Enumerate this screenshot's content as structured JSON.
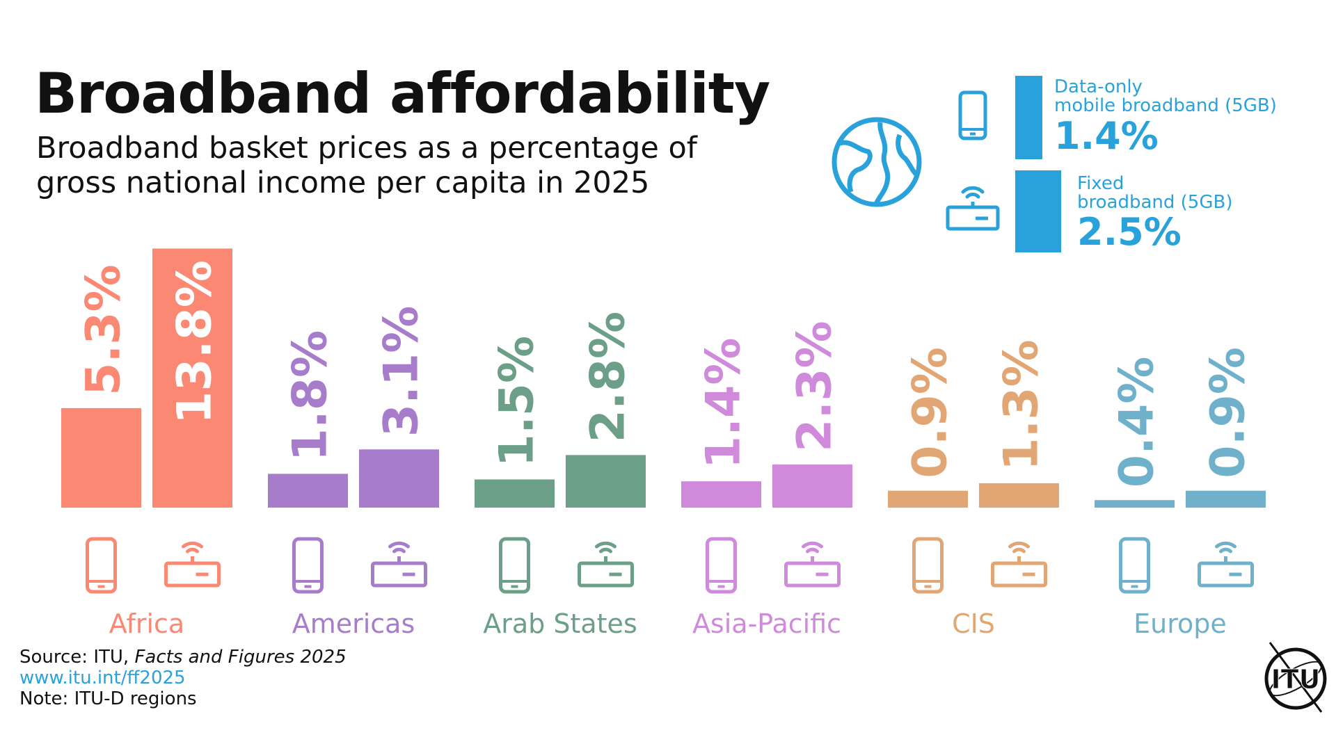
{
  "title": "Broadband affordability",
  "subtitle": "Broadband basket prices as a percentage of gross national income per capita in 2025",
  "legend": {
    "mobile": {
      "label_line1": "Data-only",
      "label_line2": "mobile broadband (5GB)",
      "value": "1.4%",
      "icon": "phone-icon"
    },
    "fixed": {
      "label_line1": "Fixed",
      "label_line2": "broadband (5GB)",
      "value": "2.5%",
      "icon": "router-icon"
    },
    "globe_icon": "globe-icon",
    "color": "#29a2dc"
  },
  "chart_data": {
    "type": "bar",
    "value_suffix": "%",
    "series_icons": [
      "phone-icon",
      "router-icon"
    ],
    "groups": [
      {
        "name": "Africa",
        "color": "#fb8873",
        "values": [
          5.3,
          13.8
        ],
        "labels": [
          "5.3%",
          "13.8%"
        ]
      },
      {
        "name": "Americas",
        "color": "#a77dcb",
        "values": [
          1.8,
          3.1
        ],
        "labels": [
          "1.8%",
          "3.1%"
        ]
      },
      {
        "name": "Arab States",
        "color": "#6b9f87",
        "values": [
          1.5,
          2.8
        ],
        "labels": [
          "1.5%",
          "2.8%"
        ]
      },
      {
        "name": "Asia-Pacific",
        "color": "#d08adc",
        "values": [
          1.4,
          2.3
        ],
        "labels": [
          "1.4%",
          "2.3%"
        ]
      },
      {
        "name": "CIS",
        "color": "#e1a674",
        "values": [
          0.9,
          1.3
        ],
        "labels": [
          "0.9%",
          "1.3%"
        ]
      },
      {
        "name": "Europe",
        "color": "#6fb1cb",
        "values": [
          0.4,
          0.9
        ],
        "labels": [
          "0.4%",
          "0.9%"
        ]
      }
    ]
  },
  "footer": {
    "source_prefix": "Source: ITU, ",
    "source_italic": "Facts and Figures 2025",
    "link": "www.itu.int/ff2025",
    "note": "Note: ITU-D regions"
  },
  "logo": {
    "text": "ITU",
    "icon": "itu-logo"
  }
}
